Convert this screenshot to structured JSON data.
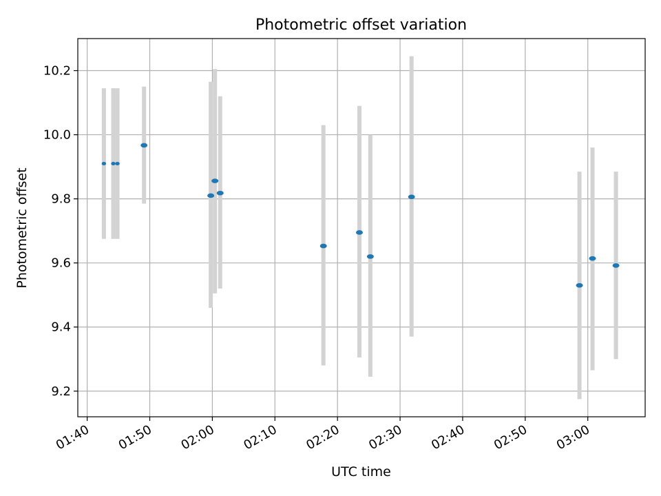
{
  "chart_data": {
    "type": "scatter",
    "title": "Photometric offset variation",
    "xlabel": "UTC time",
    "ylabel": "Photometric offset",
    "x_unit": "minutes",
    "xlim": [
      "01:38:30",
      "03:09:10"
    ],
    "ylim": [
      9.12,
      10.3
    ],
    "x_ticks": [
      "01:40",
      "01:50",
      "02:00",
      "02:10",
      "02:20",
      "02:30",
      "02:40",
      "02:50",
      "03:00"
    ],
    "y_ticks": [
      9.2,
      9.4,
      9.6,
      9.8,
      10.0,
      10.2
    ],
    "grid": true,
    "colors": {
      "point": "#1f77b4",
      "errorbar": "#d3d3d3",
      "grid": "#b0b0b0"
    },
    "series": [
      {
        "points": [
          {
            "x": "01:42:40",
            "y": 9.91,
            "yerr_low": 9.675,
            "yerr_high": 10.145,
            "marker": "small"
          },
          {
            "x": "01:44:10",
            "y": 9.91,
            "yerr_low": 9.675,
            "yerr_high": 10.145,
            "marker": "small"
          },
          {
            "x": "01:44:50",
            "y": 9.91,
            "yerr_low": 9.675,
            "yerr_high": 10.145,
            "marker": "small"
          },
          {
            "x": "01:49:05",
            "y": 9.967,
            "yerr_low": 9.785,
            "yerr_high": 10.15,
            "marker": "large"
          },
          {
            "x": "01:59:45",
            "y": 9.81,
            "yerr_low": 9.46,
            "yerr_high": 10.165,
            "marker": "large"
          },
          {
            "x": "02:00:25",
            "y": 9.856,
            "yerr_low": 9.505,
            "yerr_high": 10.205,
            "marker": "large"
          },
          {
            "x": "02:01:15",
            "y": 9.818,
            "yerr_low": 9.52,
            "yerr_high": 10.12,
            "marker": "large"
          },
          {
            "x": "02:17:45",
            "y": 9.653,
            "yerr_low": 9.28,
            "yerr_high": 10.03,
            "marker": "large"
          },
          {
            "x": "02:23:30",
            "y": 9.695,
            "yerr_low": 9.305,
            "yerr_high": 10.09,
            "marker": "large"
          },
          {
            "x": "02:25:15",
            "y": 9.62,
            "yerr_low": 9.245,
            "yerr_high": 10.0,
            "marker": "large"
          },
          {
            "x": "02:31:50",
            "y": 9.806,
            "yerr_low": 9.37,
            "yerr_high": 10.245,
            "marker": "large"
          },
          {
            "x": "02:58:40",
            "y": 9.53,
            "yerr_low": 9.175,
            "yerr_high": 9.885,
            "marker": "large"
          },
          {
            "x": "03:00:45",
            "y": 9.614,
            "yerr_low": 9.265,
            "yerr_high": 9.96,
            "marker": "large"
          },
          {
            "x": "03:04:30",
            "y": 9.592,
            "yerr_low": 9.3,
            "yerr_high": 9.885,
            "marker": "large"
          }
        ]
      }
    ]
  }
}
